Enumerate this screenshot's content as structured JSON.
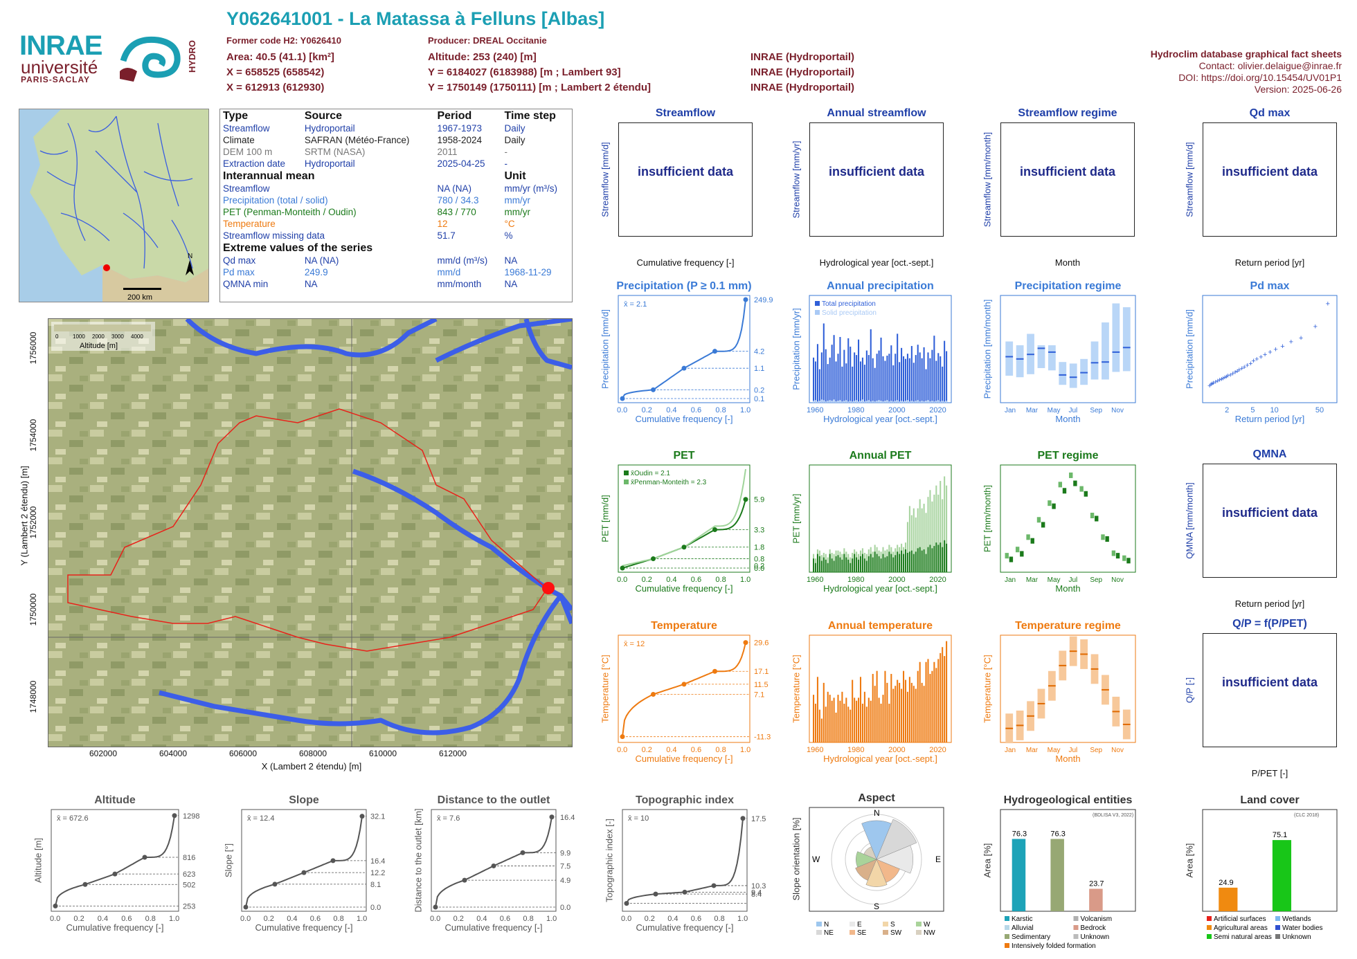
{
  "header": {
    "title": "Y062641001 - La Matassa à Felluns [Albas]",
    "former_code": "Former code H2: Y0626410",
    "producer": "Producer: DREAL Occitanie",
    "area": "Area: 40.5 (41.1) [km²]",
    "altitude": "Altitude: 253 (240) [m]",
    "x93": "X = 658525 (658542)",
    "y93": "Y = 6184027 (6183988) [m ; Lambert 93]",
    "x2e": "X = 612913 (612930)",
    "y2e": "Y = 1750149 (1750111) [m ; Lambert 2 étendu]",
    "src1": "INRAE (Hydroportail)",
    "src2": "INRAE (Hydroportail)",
    "src3": "INRAE (Hydroportail)",
    "right_title": "Hydroclim database graphical fact sheets",
    "contact": "Contact: olivier.delaigue@inrae.fr",
    "doi": "DOI: https://doi.org/10.15454/UV01P1",
    "version": "Version: 2025-06-26"
  },
  "logos": {
    "inrae": "INRAE",
    "universite": "université",
    "paris_saclay": "PARIS-SACLAY",
    "hydro": "HYDRO"
  },
  "colors": {
    "teal": "#1b9fb3",
    "maroon": "#7a1f2b",
    "streamflow_blue": "#1f3fa8",
    "precip_blue": "#3a7ad6",
    "pet_green": "#1b7a1b",
    "temp_orange": "#ee7a10",
    "gray": "#555555"
  },
  "info": {
    "h_type": "Type",
    "h_source": "Source",
    "h_period": "Period",
    "h_step": "Time step",
    "rows": [
      {
        "type": "Streamflow",
        "source": "Hydroportail",
        "period": "1967-1973",
        "step": "Daily"
      },
      {
        "type": "Climate",
        "source": "SAFRAN (Météo-France)",
        "period": "1958-2024",
        "step": "Daily"
      },
      {
        "type": "DEM 100 m",
        "source": "SRTM (NASA)",
        "period": "2011",
        "step": "-"
      },
      {
        "type": "Extraction date",
        "source": "Hydroportail",
        "period": "2025-04-25",
        "step": "-"
      }
    ],
    "h_interannual": "Interannual mean",
    "h_unit": "Unit",
    "means": [
      {
        "label": "Streamflow",
        "value": "NA (NA)",
        "unit": "mm/yr (m³/s)"
      },
      {
        "label": "Precipitation (total / solid)",
        "value": "780 / 34.3",
        "unit": "mm/yr"
      },
      {
        "label": "PET (Penman-Monteith / Oudin)",
        "value": "843 / 770",
        "unit": "mm/yr"
      },
      {
        "label": "Temperature",
        "value": "12",
        "unit": "°C"
      },
      {
        "label": "Streamflow missing data",
        "value": "51.7",
        "unit": "%"
      }
    ],
    "h_extreme": "Extreme values of the series",
    "extremes": [
      {
        "label": "Qd max",
        "v1": "NA (NA)",
        "unit": "mm/d (m³/s)",
        "date": "NA"
      },
      {
        "label": "Pd max",
        "v1": "249.9",
        "unit": "mm/d",
        "date": "1968-11-29"
      },
      {
        "label": "QMNA min",
        "v1": "NA",
        "unit": "mm/month",
        "date": "NA"
      }
    ]
  },
  "overview_map": {
    "scale": "200 km",
    "north": "N"
  },
  "basin_map": {
    "legend_title": "Altitude [m]",
    "legend_ticks": [
      "0",
      "1000",
      "2000",
      "3000",
      "4000"
    ],
    "xlabel": "X (Lambert 2 étendu) [m]",
    "ylabel": "Y (Lambert 2 étendu) [m]",
    "xticks": [
      "602000",
      "604000",
      "606000",
      "608000",
      "610000",
      "612000"
    ],
    "yticks": [
      "1748000",
      "1750000",
      "1752000",
      "1754000",
      "1756000"
    ]
  },
  "insufficient": "insufficient data",
  "panels": {
    "streamflow": {
      "title": "Streamflow",
      "ylabel": "Streamflow [mm/d]",
      "xlabel": "Cumulative frequency [-]"
    },
    "annual_streamflow": {
      "title": "Annual streamflow",
      "ylabel": "Streamflow [mm/yr]",
      "xlabel": "Hydrological year [oct.-sept.]"
    },
    "streamflow_regime": {
      "title": "Streamflow regime",
      "ylabel": "Streamflow [mm/month]",
      "xlabel": "Month"
    },
    "qd_max": {
      "title": "Qd max",
      "ylabel": "Streamflow [mm/d]",
      "xlabel": "Return period [yr]"
    },
    "qmna": {
      "title": "QMNA",
      "ylabel": "QMNA [mm/month]",
      "xlabel": "Return period [yr]"
    },
    "qp": {
      "title": "Q/P = f(P/PET)",
      "ylabel": "Q/P [-]",
      "xlabel": "P/PET [-]"
    },
    "precip": {
      "title": "Precipitation (P ≥ 0.1 mm)",
      "ylabel": "Precipitation [mm/d]",
      "xlabel": "Cumulative frequency [-]",
      "mean": "x̄ = 2.1",
      "right_ticks": [
        "249.9",
        "4.2",
        "1.1",
        "0.2",
        "0.1"
      ]
    },
    "annual_precip": {
      "title": "Annual precipitation",
      "ylabel": "Precipitation [mm/yr]",
      "xlabel": "Hydrological year [oct.-sept.]",
      "legend": [
        "Total precipitation",
        "Solid precipitation"
      ]
    },
    "precip_regime": {
      "title": "Precipitation regime",
      "ylabel": "Precipitation [mm/month]",
      "xlabel": "Month"
    },
    "pd_max": {
      "title": "Pd max",
      "ylabel": "Precipitation [mm/d]",
      "xlabel": "Return period [yr]"
    },
    "pet": {
      "title": "PET",
      "ylabel": "PET [mm/d]",
      "xlabel": "Cumulative frequency [-]",
      "legend": [
        "x̄Oudin = 2.1",
        "x̄Penman-Monteith = 2.3"
      ],
      "right_ticks": [
        "5.9",
        "3.3",
        "1.8",
        "0.8",
        "0.2",
        "0.0"
      ]
    },
    "annual_pet": {
      "title": "Annual PET",
      "ylabel": "PET [mm/yr]",
      "xlabel": "Hydrological year [oct.-sept.]"
    },
    "pet_regime": {
      "title": "PET regime",
      "ylabel": "PET [mm/month]",
      "xlabel": "Month"
    },
    "temp": {
      "title": "Temperature",
      "ylabel": "Temperature [°C]",
      "xlabel": "Cumulative frequency [-]",
      "mean": "x̄ = 12",
      "right_ticks": [
        "29.6",
        "17.1",
        "11.5",
        "7.1",
        "-11.3"
      ]
    },
    "annual_temp": {
      "title": "Annual temperature",
      "ylabel": "Temperature [°C]",
      "xlabel": "Hydrological year [oct.-sept.]"
    },
    "temp_regime": {
      "title": "Temperature regime",
      "ylabel": "Temperature [°C]",
      "xlabel": "Month"
    },
    "altitude": {
      "title": "Altitude",
      "ylabel": "Altitude [m]",
      "xlabel": "Cumulative frequency [-]",
      "mean": "x̄ = 672.6",
      "right_ticks": [
        "1298",
        "816",
        "623",
        "502",
        "253"
      ]
    },
    "slope": {
      "title": "Slope",
      "ylabel": "Slope [°]",
      "xlabel": "Cumulative frequency [-]",
      "mean": "x̄ = 12.4",
      "right_ticks": [
        "32.1",
        "16.4",
        "12.2",
        "8.1",
        "0.0"
      ]
    },
    "distance": {
      "title": "Distance to the outlet",
      "ylabel": "Distance to the outlet [km]",
      "xlabel": "Cumulative frequency [-]",
      "mean": "x̄ = 7.6",
      "right_ticks": [
        "16.4",
        "9.9",
        "7.5",
        "4.9",
        "0.0"
      ]
    },
    "topo": {
      "title": "Topographic index",
      "ylabel": "Topographic index [-]",
      "xlabel": "Cumulative frequency [-]",
      "mean": "x̄ = 10",
      "right_ticks": [
        "17.5",
        "10.3",
        "9.4",
        "8.4"
      ]
    },
    "aspect": {
      "title": "Aspect",
      "ylabel": "Slope orientation [%]",
      "legend": [
        "N",
        "E",
        "S",
        "W",
        "NE",
        "SE",
        "SW",
        "NW"
      ]
    },
    "hydrogeo": {
      "title": "Hydrogeological entities",
      "ylabel": "Area [%]",
      "note": "(BDLISA V3, 2022)",
      "legend": [
        "Karstic",
        "Volcanism",
        "Alluvial",
        "Bedrock",
        "Sedimentary",
        "Unknown",
        "Intensively folded formation"
      ]
    },
    "landcover": {
      "title": "Land cover",
      "ylabel": "Area [%]",
      "note": "(CLC 2018)",
      "legend": [
        "Artificial surfaces",
        "Wetlands",
        "Agricultural areas",
        "Water bodies",
        "Semi natural areas",
        "Unknown"
      ]
    }
  },
  "chart_data": [
    {
      "id": "precip_cdf",
      "type": "line",
      "xlim": [
        0,
        1
      ],
      "quantiles_x": [
        0,
        0.25,
        0.5,
        0.75,
        1
      ],
      "quantiles_y": [
        0.1,
        0.2,
        1.1,
        4.2,
        249.9
      ],
      "yscale": "log"
    },
    {
      "id": "pet_cdf",
      "type": "line",
      "xlim": [
        0,
        1
      ],
      "series": [
        {
          "name": "Oudin",
          "x": [
            0,
            0.25,
            0.5,
            0.75,
            1
          ],
          "y": [
            0.0,
            0.8,
            1.8,
            3.3,
            5.9
          ]
        },
        {
          "name": "Penman-Monteith",
          "x": [
            0,
            0.25,
            0.5,
            0.75,
            1
          ],
          "y": [
            0.2,
            0.8,
            1.8,
            3.6,
            8.5
          ]
        }
      ],
      "ylim": [
        0,
        8.5
      ]
    },
    {
      "id": "temp_cdf",
      "type": "line",
      "xlim": [
        0,
        1
      ],
      "quantiles_x": [
        0,
        0.25,
        0.5,
        0.75,
        1
      ],
      "quantiles_y": [
        -11.3,
        7.1,
        11.5,
        17.1,
        29.6
      ],
      "ylim": [
        -12,
        31
      ]
    },
    {
      "id": "alt_cdf",
      "type": "line",
      "quantiles_x": [
        0,
        0.25,
        0.5,
        0.75,
        1
      ],
      "quantiles_y": [
        253,
        502,
        623,
        816,
        1298
      ],
      "ylim": [
        240,
        1320
      ]
    },
    {
      "id": "slope_cdf",
      "type": "line",
      "quantiles_x": [
        0,
        0.25,
        0.5,
        0.75,
        1
      ],
      "quantiles_y": [
        0.0,
        8.1,
        12.2,
        16.4,
        32.1
      ],
      "ylim": [
        0,
        33
      ]
    },
    {
      "id": "dist_cdf",
      "type": "line",
      "quantiles_x": [
        0,
        0.25,
        0.5,
        0.75,
        1
      ],
      "quantiles_y": [
        0.0,
        4.9,
        7.5,
        9.9,
        16.4
      ],
      "ylim": [
        0,
        17
      ]
    },
    {
      "id": "topo_cdf",
      "type": "line",
      "quantiles_x": [
        0,
        0.25,
        0.5,
        0.75,
        1
      ],
      "quantiles_y": [
        8.4,
        9.4,
        9.6,
        10.3,
        17.5
      ],
      "ylim": [
        8,
        18
      ]
    },
    {
      "id": "annual_precip",
      "type": "bar",
      "x_start": 1959,
      "x_end": 2024,
      "values_total": [
        700,
        640,
        910,
        520,
        780,
        1230,
        830,
        600,
        700,
        900,
        1050,
        640,
        760,
        1020,
        560,
        820,
        610,
        1000,
        870,
        560,
        780,
        740,
        980,
        640,
        700,
        590,
        810,
        740,
        1140,
        690,
        540,
        760,
        810,
        1010,
        720,
        650,
        730,
        760,
        890,
        580,
        760,
        1070,
        630,
        850,
        720,
        680,
        760,
        690,
        880,
        620,
        740,
        900,
        780,
        690,
        860,
        520,
        780,
        690,
        820,
        1040,
        650,
        770,
        720,
        560,
        960,
        800
      ],
      "values_solid": [
        30,
        40,
        20,
        30,
        50,
        40,
        20,
        30,
        40,
        30,
        50,
        20,
        30,
        40,
        20,
        30,
        40,
        20,
        30,
        20,
        30,
        40,
        20,
        30,
        50,
        20,
        30,
        40,
        20,
        30,
        20,
        30,
        40,
        30,
        20,
        30,
        40,
        20,
        30,
        20,
        30,
        40,
        20,
        30,
        20,
        30,
        40,
        20,
        30,
        20,
        30,
        40,
        20,
        30,
        20,
        30,
        40,
        20,
        30,
        20,
        30,
        40,
        20,
        30,
        20,
        30
      ],
      "ylim": [
        0,
        1600
      ]
    },
    {
      "id": "precip_regime",
      "type": "box",
      "categories": [
        "Jan",
        "Feb",
        "Mar",
        "Apr",
        "May",
        "Jun",
        "Jul",
        "Aug",
        "Sep",
        "Oct",
        "Nov",
        "Dec"
      ],
      "median": [
        55,
        52,
        58,
        66,
        61,
        31,
        28,
        34,
        47,
        48,
        61,
        67
      ],
      "q25": [
        30,
        28,
        32,
        40,
        37,
        18,
        14,
        18,
        25,
        25,
        35,
        36
      ],
      "q75": [
        75,
        70,
        85,
        70,
        70,
        48,
        46,
        52,
        75,
        100,
        125,
        120
      ],
      "ylim": [
        0,
        130
      ]
    },
    {
      "id": "pd_max",
      "type": "scatter",
      "xscale": "log",
      "x": [
        1.05,
        1.1,
        1.15,
        1.2,
        1.3,
        1.4,
        1.5,
        1.6,
        1.7,
        1.8,
        1.9,
        2.0,
        2.2,
        2.4,
        2.6,
        2.8,
        3.0,
        3.3,
        3.6,
        4.0,
        4.5,
        5.0,
        5.6,
        6.5,
        7.5,
        9.0,
        11,
        14,
        19,
        27,
        45,
        70
      ],
      "y": [
        35,
        38,
        40,
        42,
        45,
        47,
        50,
        52,
        54,
        56,
        58,
        61,
        63,
        66,
        70,
        73,
        76,
        80,
        84,
        88,
        93,
        100,
        105,
        110,
        116,
        123,
        130,
        138,
        150,
        160,
        190,
        250
      ],
      "ylim": [
        0,
        260
      ]
    },
    {
      "id": "annual_pet",
      "type": "bar",
      "x_start": 1959,
      "x_end": 2024,
      "values_oudin": [
        740,
        720,
        760,
        750,
        730,
        745,
        735,
        720,
        760,
        740,
        730,
        750,
        755,
        745,
        735,
        760,
        745,
        735,
        720,
        740,
        760,
        745,
        735,
        750,
        760,
        740,
        730,
        750,
        760,
        745,
        770,
        760,
        750,
        740,
        760,
        745,
        750,
        770,
        760,
        745,
        755,
        770,
        760,
        775,
        760,
        780,
        765,
        770,
        775,
        760,
        770,
        785,
        790,
        775,
        780,
        760,
        790,
        800,
        785,
        795,
        810,
        800,
        810,
        790,
        820,
        805
      ],
      "values_pm": [
        760,
        740,
        780,
        775,
        755,
        765,
        760,
        745,
        780,
        765,
        760,
        775,
        775,
        770,
        760,
        785,
        770,
        760,
        745,
        765,
        780,
        770,
        760,
        775,
        785,
        765,
        760,
        780,
        790,
        770,
        800,
        790,
        775,
        770,
        790,
        775,
        780,
        800,
        790,
        770,
        785,
        800,
        790,
        805,
        790,
        810,
        900,
        970,
        930,
        960,
        920,
        960,
        1000,
        960,
        980,
        940,
        1010,
        1040,
        990,
        1020,
        1060,
        1020,
        1080,
        1000,
        1100,
        1060
      ],
      "ylim": [
        680,
        1150
      ]
    },
    {
      "id": "pet_regime",
      "type": "box",
      "categories": [
        "Jan",
        "Feb",
        "Mar",
        "Apr",
        "May",
        "Jun",
        "Jul",
        "Aug",
        "Sep",
        "Oct",
        "Nov",
        "Dec"
      ],
      "oudin": [
        14,
        23,
        44,
        70,
        100,
        125,
        137,
        120,
        80,
        47,
        20,
        12
      ],
      "pm": [
        20,
        30,
        50,
        78,
        105,
        135,
        150,
        128,
        85,
        50,
        24,
        16
      ],
      "ylim": [
        0,
        160
      ]
    },
    {
      "id": "annual_temp",
      "type": "bar",
      "x_start": 1959,
      "x_end": 2024,
      "values": [
        11.8,
        11.5,
        12.4,
        11.3,
        11.0,
        12.2,
        11.4,
        11.9,
        11.8,
        11.6,
        11.7,
        11.2,
        11.8,
        11.6,
        11.9,
        11.5,
        11.7,
        11.4,
        11.3,
        12.3,
        11.7,
        11.6,
        11.7,
        12.4,
        11.5,
        11.9,
        11.4,
        11.7,
        11.6,
        12.5,
        12.1,
        12.6,
        11.7,
        11.5,
        11.8,
        12.6,
        12.2,
        11.5,
        12.5,
        12.0,
        12.1,
        12.3,
        12.2,
        12.0,
        12.6,
        12.3,
        11.9,
        12.4,
        12.2,
        12.1,
        12.0,
        12.6,
        12.9,
        12.2,
        12.1,
        12.9,
        13.0,
        12.5,
        12.6,
        12.9,
        12.7,
        13.0,
        13.2,
        13.4,
        13.1,
        13.6
      ],
      "ylim": [
        10.2,
        13.8
      ]
    },
    {
      "id": "temp_regime",
      "type": "box",
      "categories": [
        "Jan",
        "Feb",
        "Mar",
        "Apr",
        "May",
        "Jun",
        "Jul",
        "Aug",
        "Sep",
        "Oct",
        "Nov",
        "Dec"
      ],
      "median": [
        5,
        5.6,
        7.5,
        10,
        13.6,
        17.7,
        20.6,
        20,
        17,
        12.8,
        8.4,
        5.8
      ],
      "ylim": [
        3,
        23
      ]
    },
    {
      "id": "aspect",
      "type": "pie",
      "categories": [
        "N",
        "NE",
        "E",
        "SE",
        "S",
        "SW",
        "W",
        "NW"
      ],
      "values": [
        17,
        19,
        16,
        11,
        12,
        10,
        9,
        6
      ],
      "colors": [
        "#9ec7ee",
        "#d8d8d8",
        "#e9e9e9",
        "#f2b88b",
        "#f2d6a8",
        "#d9b08a",
        "#a9d39a",
        "#d8d0c0"
      ]
    },
    {
      "id": "hydrogeo",
      "type": "bar",
      "categories": [
        "Karstic",
        "Sedimentary",
        "Bedrock"
      ],
      "values": [
        76.3,
        76.3,
        23.7
      ],
      "colors": [
        "#1da3b8",
        "#97a874",
        "#d99a88"
      ],
      "ylim": [
        0,
        100
      ]
    },
    {
      "id": "landcover",
      "type": "bar",
      "categories": [
        "Agricultural areas",
        "Semi natural areas"
      ],
      "values": [
        24.9,
        75.1
      ],
      "colors": [
        "#f08a10",
        "#18c618"
      ],
      "ylim": [
        0,
        100
      ]
    }
  ]
}
